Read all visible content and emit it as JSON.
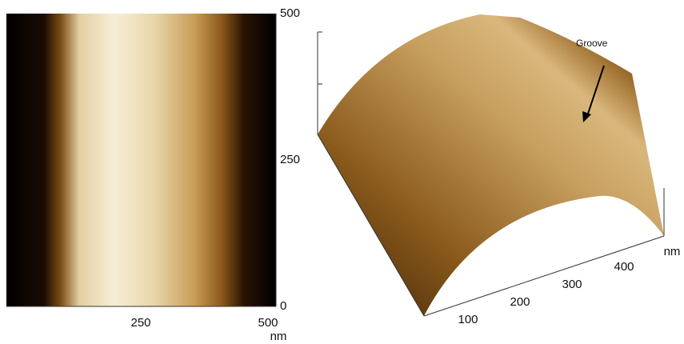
{
  "left_image": {
    "x_ticks": [
      250,
      500
    ],
    "x_unit": "nm",
    "y_ticks": [
      0,
      250,
      500
    ]
  },
  "right_image": {
    "annotation": "Groove",
    "axis_ticks": [
      100,
      200,
      300,
      400
    ],
    "axis_unit": "nm"
  }
}
